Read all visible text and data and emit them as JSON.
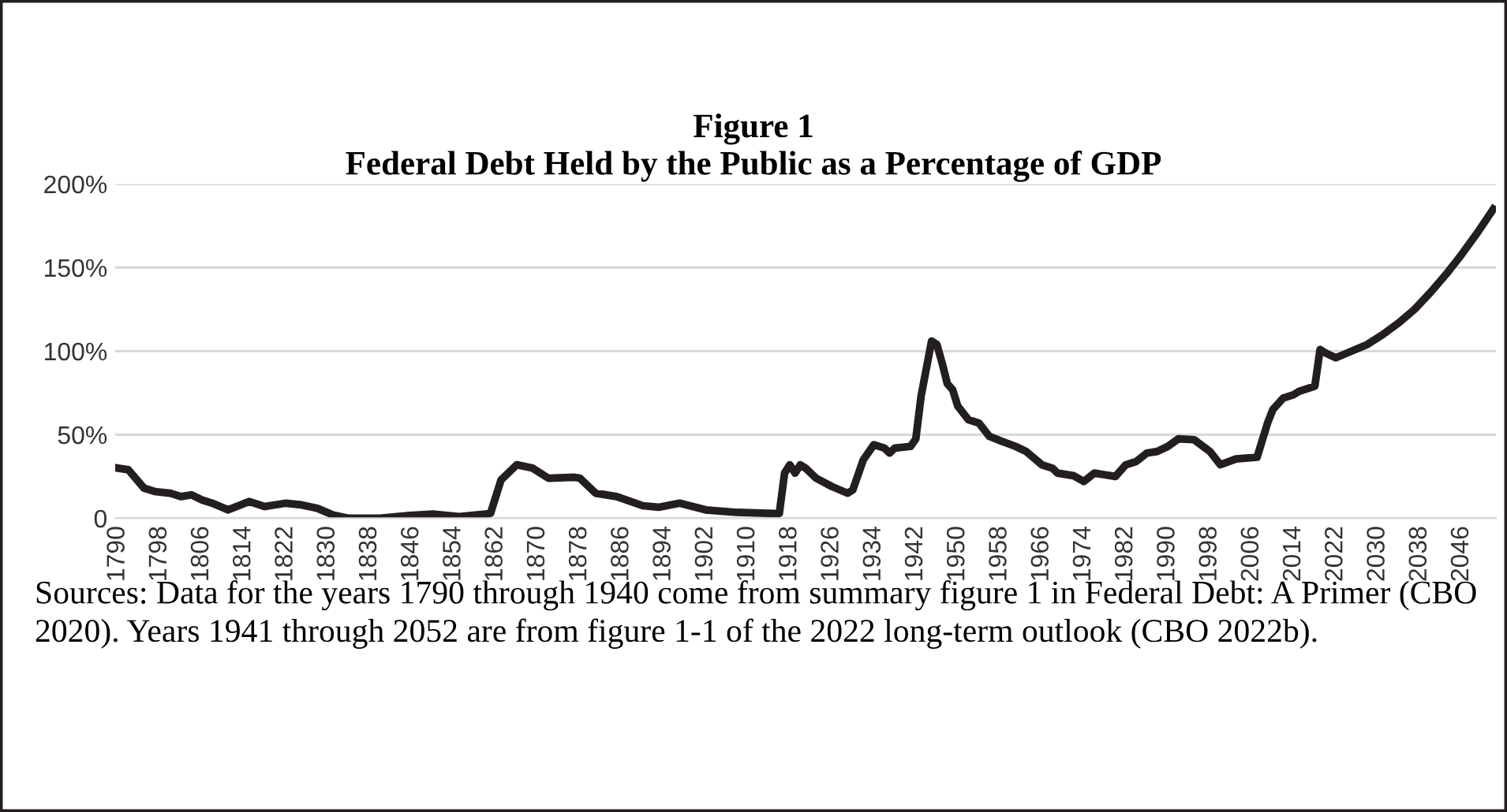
{
  "chart_data": {
    "type": "line",
    "title": "Figure 1\nFederal Debt Held by the Public as a Percentage of GDP",
    "x": [
      1790,
      1792,
      1795,
      1797,
      1800,
      1802,
      1804,
      1806,
      1808,
      1811,
      1815,
      1818,
      1822,
      1825,
      1828,
      1831,
      1834,
      1840,
      1845,
      1850,
      1855,
      1860,
      1861,
      1863,
      1866,
      1869,
      1872,
      1877,
      1878,
      1881,
      1885,
      1890,
      1893,
      1897,
      1902,
      1908,
      1915,
      1916,
      1917,
      1918,
      1919,
      1920,
      1921,
      1923,
      1926,
      1929,
      1930,
      1932,
      1934,
      1936,
      1937,
      1938,
      1941,
      1942,
      1943,
      1945,
      1946,
      1947,
      1948,
      1949,
      1950,
      1952,
      1954,
      1956,
      1958,
      1961,
      1963,
      1966,
      1968,
      1969,
      1972,
      1974,
      1976,
      1978,
      1980,
      1982,
      1984,
      1986,
      1988,
      1990,
      1992,
      1995,
      1998,
      2000,
      2003,
      2007,
      2009,
      2010,
      2012,
      2014,
      2015,
      2018,
      2019,
      2020,
      2022,
      2025,
      2028,
      2031,
      2034,
      2037,
      2040,
      2043,
      2046,
      2049,
      2052
    ],
    "series": [
      {
        "color": "#231f20",
        "values": [
          30,
          29,
          18,
          16,
          15,
          13,
          14,
          11,
          9,
          5,
          10,
          7,
          9,
          8,
          6,
          2,
          0,
          0,
          1.5,
          2.5,
          1,
          2.5,
          3,
          23,
          32,
          30,
          24,
          24.5,
          24,
          15,
          13,
          7.5,
          6.6,
          9,
          5,
          3.5,
          2.8,
          3,
          27,
          32,
          27,
          32,
          30,
          24,
          19,
          15,
          17,
          35,
          44,
          42,
          39,
          42,
          43,
          47.5,
          73,
          106,
          104,
          93,
          80.5,
          77,
          67,
          59,
          57,
          49,
          46.5,
          43,
          40,
          32,
          30,
          27,
          25.5,
          22,
          27,
          26,
          25,
          32,
          34,
          39,
          40,
          43,
          47.5,
          47,
          40,
          32,
          35.5,
          36.5,
          57,
          65,
          72,
          74,
          76,
          79,
          101,
          99,
          96,
          100,
          104,
          110,
          117,
          125,
          135,
          146,
          158,
          171,
          185
        ]
      }
    ],
    "xlim": [
      1789.5,
      2052.5
    ],
    "xticks": [
      1790,
      1798,
      1806,
      1814,
      1822,
      1830,
      1838,
      1846,
      1854,
      1862,
      1870,
      1878,
      1886,
      1894,
      1902,
      1910,
      1918,
      1926,
      1934,
      1942,
      1950,
      1958,
      1966,
      1974,
      1982,
      1990,
      1998,
      2006,
      2014,
      2022,
      2030,
      2038,
      2046
    ],
    "ylim": [
      0,
      200
    ],
    "yticks": [
      {
        "value": 0,
        "label": "0"
      },
      {
        "value": 50,
        "label": "50%"
      },
      {
        "value": 100,
        "label": "100%"
      },
      {
        "value": 150,
        "label": "150%"
      },
      {
        "value": 200,
        "label": "200%"
      }
    ],
    "grid": "y",
    "marker": "none",
    "line_style": "solid",
    "annotations": [
      "Sources: Data for the years 1790 through 1940 come from summary figure 1 in Federal Debt: A Primer (CBO 2020). Years 1941 through 2052 are from figure 1-1 of the 2022 long-term outlook (CBO 2022b)."
    ]
  }
}
